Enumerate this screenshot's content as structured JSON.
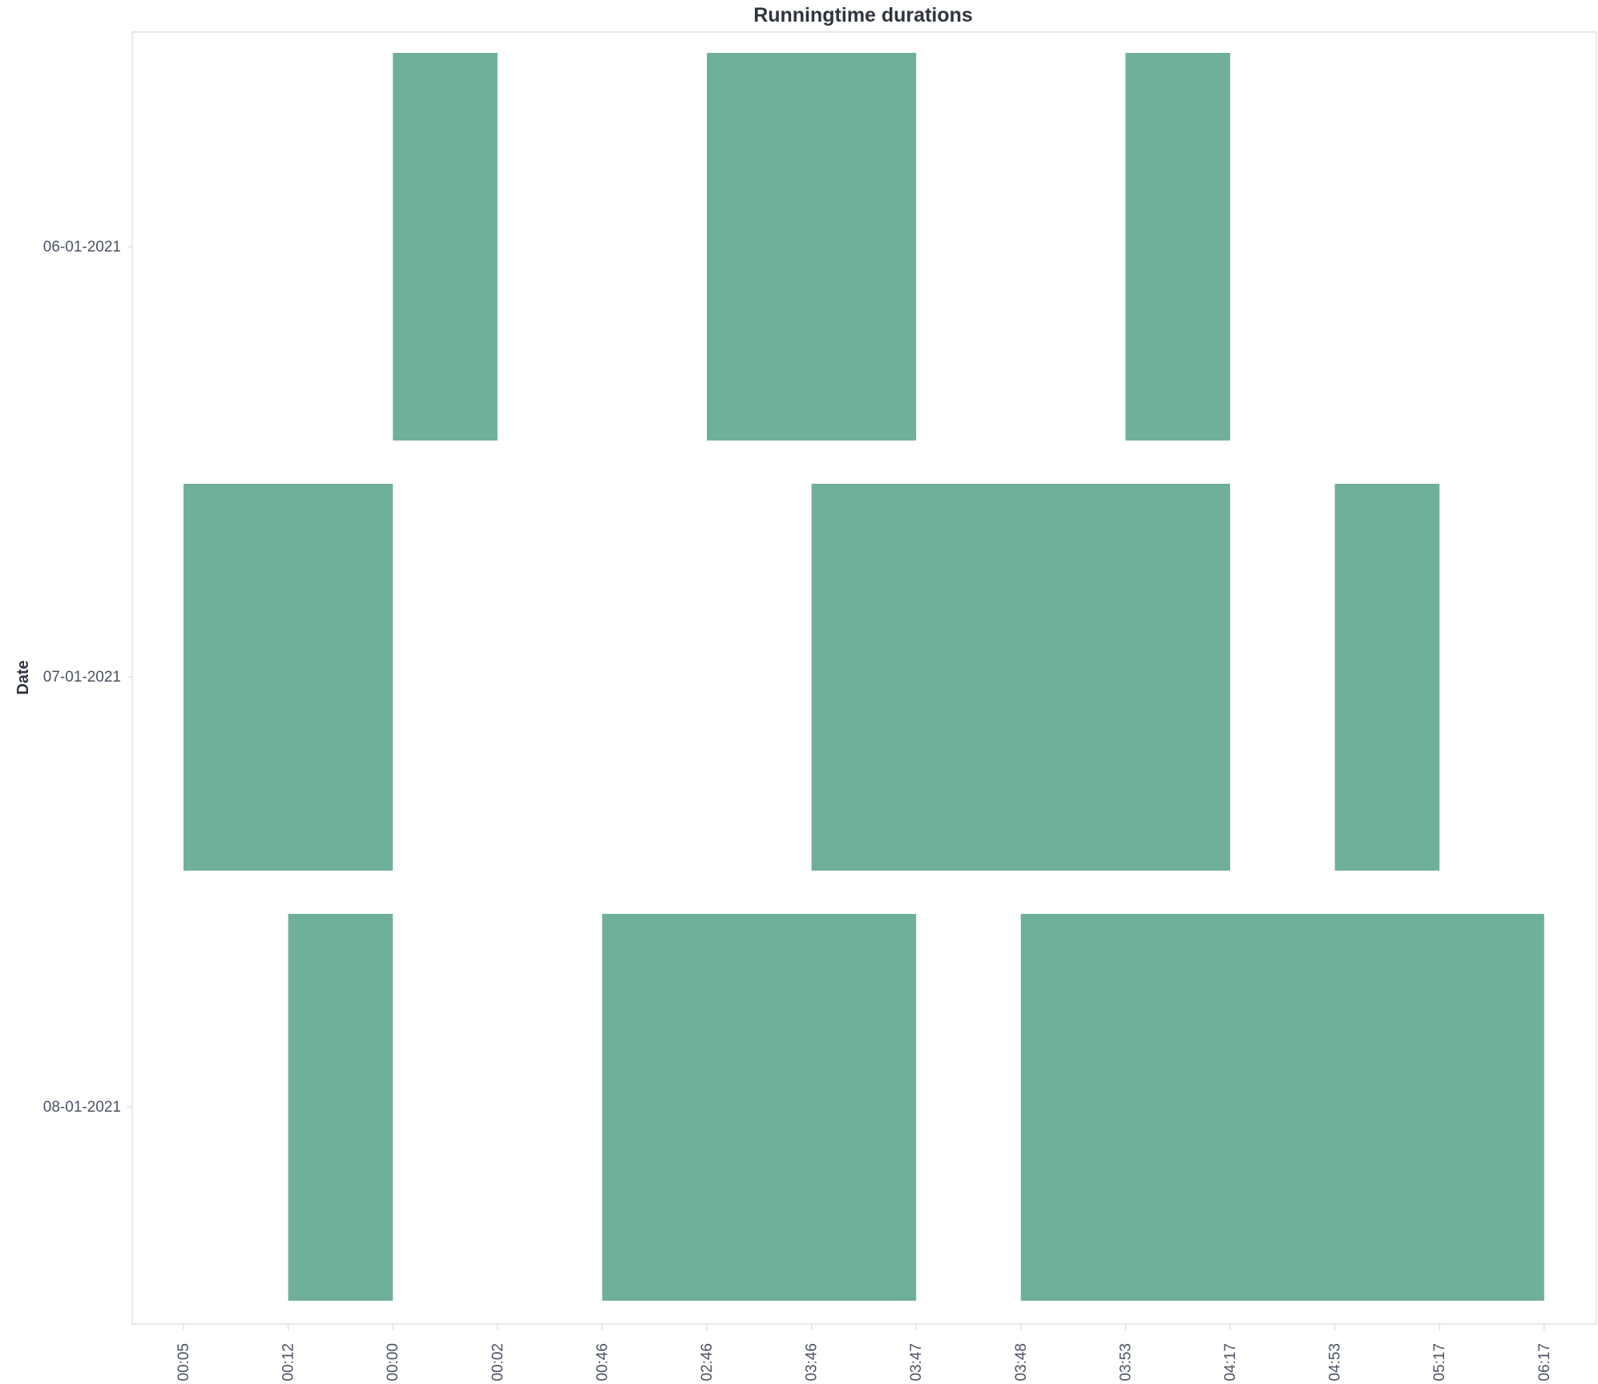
{
  "chart_data": {
    "type": "bar",
    "orientation": "horizontal-range",
    "title": "Runningtime durations",
    "xlabel": "",
    "ylabel": "Date",
    "x_categories": [
      "00:05",
      "00:12",
      "00:00",
      "00:02",
      "00:46",
      "02:46",
      "03:46",
      "03:47",
      "03:48",
      "03:53",
      "04:17",
      "04:53",
      "05:17",
      "06:17"
    ],
    "y_categories": [
      "06-01-2021",
      "07-01-2021",
      "08-01-2021"
    ],
    "series": [
      {
        "category": "06-01-2021",
        "ranges": [
          {
            "start": "00:00",
            "end": "00:02"
          },
          {
            "start": "02:46",
            "end": "03:47"
          },
          {
            "start": "03:53",
            "end": "04:17"
          }
        ]
      },
      {
        "category": "07-01-2021",
        "ranges": [
          {
            "start": "00:05",
            "end": "00:00"
          },
          {
            "start": "03:46",
            "end": "04:17"
          },
          {
            "start": "04:53",
            "end": "05:17"
          }
        ]
      },
      {
        "category": "08-01-2021",
        "ranges": [
          {
            "start": "00:12",
            "end": "00:00"
          },
          {
            "start": "00:46",
            "end": "03:47"
          },
          {
            "start": "03:48",
            "end": "06:17"
          }
        ]
      }
    ],
    "colors": {
      "bar": "#6fb09a",
      "axis": "#cfd3d8",
      "text": "#4b5263",
      "title": "#2f3440"
    },
    "grid": false,
    "legend": "none"
  }
}
